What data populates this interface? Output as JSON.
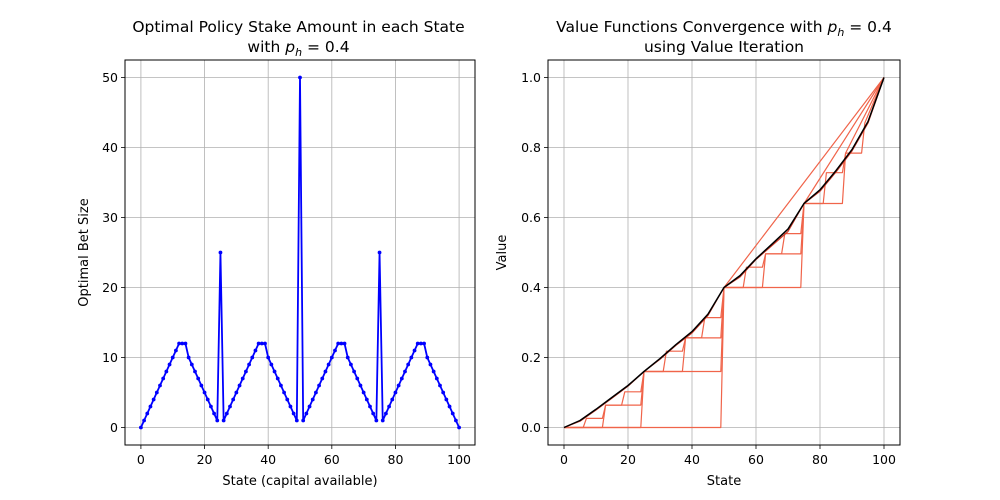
{
  "chart_data": [
    {
      "type": "line",
      "title_line1": "Optimal Policy Stake Amount in each State",
      "title_line2_prefix": "with ",
      "title_symbol": "p",
      "title_subscript": "h",
      "title_value": " = 0.4",
      "xlabel": "State (capital available)",
      "ylabel": "Optimal Bet Size",
      "xlim": [
        -5,
        105
      ],
      "ylim": [
        -2.5,
        52.5
      ],
      "xticks": [
        0,
        20,
        40,
        60,
        80,
        100
      ],
      "yticks": [
        0,
        10,
        20,
        30,
        40,
        50
      ],
      "grid": true,
      "series": [
        {
          "color": "#0000ff",
          "marker": "dot",
          "x": [
            0,
            1,
            2,
            3,
            4,
            5,
            6,
            7,
            8,
            9,
            10,
            11,
            12,
            13,
            14,
            15,
            16,
            17,
            18,
            19,
            20,
            21,
            22,
            23,
            24,
            25,
            26,
            27,
            28,
            29,
            30,
            31,
            32,
            33,
            34,
            35,
            36,
            37,
            38,
            39,
            40,
            41,
            42,
            43,
            44,
            45,
            46,
            47,
            48,
            49,
            50,
            51,
            52,
            53,
            54,
            55,
            56,
            57,
            58,
            59,
            60,
            61,
            62,
            63,
            64,
            65,
            66,
            67,
            68,
            69,
            70,
            71,
            72,
            73,
            74,
            75,
            76,
            77,
            78,
            79,
            80,
            81,
            82,
            83,
            84,
            85,
            86,
            87,
            88,
            89,
            90,
            91,
            92,
            93,
            94,
            95,
            96,
            97,
            98,
            99,
            100
          ],
          "values": [
            0,
            1,
            2,
            3,
            4,
            5,
            6,
            7,
            8,
            9,
            10,
            11,
            12,
            12,
            12,
            10,
            9,
            8,
            7,
            6,
            5,
            4,
            3,
            2,
            1,
            25,
            1,
            2,
            3,
            4,
            5,
            6,
            7,
            8,
            9,
            10,
            11,
            12,
            12,
            12,
            10,
            9,
            8,
            7,
            6,
            5,
            4,
            3,
            2,
            1,
            50,
            1,
            2,
            3,
            4,
            5,
            6,
            7,
            8,
            9,
            10,
            11,
            12,
            12,
            12,
            10,
            9,
            8,
            7,
            6,
            5,
            4,
            3,
            2,
            1,
            25,
            1,
            2,
            3,
            4,
            5,
            6,
            7,
            8,
            9,
            10,
            11,
            12,
            12,
            12,
            10,
            9,
            8,
            7,
            6,
            5,
            4,
            3,
            2,
            1,
            0
          ]
        }
      ]
    },
    {
      "type": "line",
      "title_line1_prefix": "Value Functions Convergence with ",
      "title_symbol": "p",
      "title_subscript": "h",
      "title_value": " = 0.4",
      "title_line2": "using Value Iteration",
      "xlabel": "State",
      "ylabel": "Value",
      "xlim": [
        -5,
        105
      ],
      "ylim": [
        -0.05,
        1.05
      ],
      "xticks": [
        0,
        20,
        40,
        60,
        80,
        100
      ],
      "yticks": [
        0.0,
        0.2,
        0.4,
        0.6,
        0.8,
        1.0
      ],
      "ytick_labels": [
        "0.0",
        "0.2",
        "0.4",
        "0.6",
        "0.8",
        "1.0"
      ],
      "grid": true,
      "series": [
        {
          "color": "#f0644a",
          "x": [
            0,
            49,
            50,
            100
          ],
          "values": [
            0,
            0,
            0.4,
            1.0
          ]
        },
        {
          "color": "#f0644a",
          "x": [
            0,
            24,
            25,
            49,
            50,
            74,
            75,
            100
          ],
          "values": [
            0,
            0,
            0.16,
            0.16,
            0.4,
            0.4,
            0.64,
            1.0
          ]
        },
        {
          "color": "#f0644a",
          "x": [
            0,
            12,
            13,
            24,
            25,
            37,
            38,
            49,
            50,
            62,
            63,
            74,
            75,
            87,
            88,
            100
          ],
          "values": [
            0,
            0,
            0.064,
            0.064,
            0.16,
            0.16,
            0.256,
            0.256,
            0.4,
            0.4,
            0.496,
            0.496,
            0.64,
            0.64,
            0.784,
            1.0
          ]
        },
        {
          "color": "#f0644a",
          "x": [
            0,
            6,
            7,
            12,
            13,
            18,
            19,
            24,
            25,
            31,
            32,
            37,
            38,
            43,
            44,
            49,
            50,
            56,
            57,
            62,
            63,
            68,
            69,
            74,
            75,
            81,
            82,
            87,
            88,
            93,
            94,
            100
          ],
          "values": [
            0,
            0,
            0.026,
            0.026,
            0.064,
            0.064,
            0.102,
            0.102,
            0.16,
            0.16,
            0.218,
            0.218,
            0.256,
            0.256,
            0.314,
            0.314,
            0.4,
            0.4,
            0.458,
            0.458,
            0.496,
            0.496,
            0.554,
            0.554,
            0.64,
            0.64,
            0.728,
            0.728,
            0.784,
            0.784,
            0.87,
            1.0
          ]
        },
        {
          "color": "#d03a28",
          "x": [
            0,
            5,
            10,
            15,
            20,
            25,
            30,
            35,
            40,
            45,
            50,
            55,
            60,
            65,
            70,
            75,
            80,
            85,
            90,
            95,
            100
          ],
          "values": [
            0,
            0.018,
            0.05,
            0.084,
            0.118,
            0.16,
            0.195,
            0.235,
            0.27,
            0.32,
            0.4,
            0.43,
            0.48,
            0.52,
            0.56,
            0.64,
            0.675,
            0.73,
            0.79,
            0.87,
            1.0
          ]
        },
        {
          "color": "#000000",
          "x": [
            0,
            5,
            10,
            15,
            20,
            25,
            30,
            35,
            40,
            45,
            50,
            55,
            60,
            65,
            70,
            75,
            80,
            85,
            90,
            95,
            100
          ],
          "values": [
            0,
            0.02,
            0.052,
            0.086,
            0.12,
            0.16,
            0.197,
            0.237,
            0.274,
            0.324,
            0.4,
            0.434,
            0.482,
            0.524,
            0.567,
            0.64,
            0.679,
            0.734,
            0.794,
            0.874,
            1.0
          ]
        }
      ]
    }
  ]
}
